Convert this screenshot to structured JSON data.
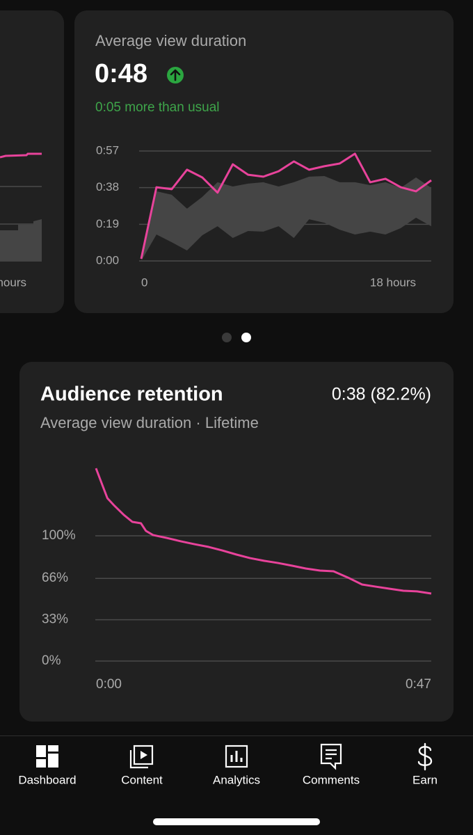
{
  "left_card": {
    "x_label": "hours"
  },
  "duration_card": {
    "title": "Average view duration",
    "value": "0:48",
    "change": "0:05 more than usual",
    "chart_data": {
      "type": "line",
      "x": [
        0,
        1,
        2,
        3,
        4,
        5,
        6,
        7,
        8,
        9,
        10,
        11,
        12,
        13,
        14,
        15,
        16,
        17,
        18,
        19
      ],
      "xlim": [
        0,
        19
      ],
      "xticks": [
        {
          "value": 0,
          "label": "0"
        },
        {
          "value": 18,
          "label": "18 hours"
        }
      ],
      "ylim": [
        0,
        57
      ],
      "yticks": [
        {
          "value": 0,
          "label": "0:00"
        },
        {
          "value": 19,
          "label": "0:19"
        },
        {
          "value": 38,
          "label": "0:38"
        },
        {
          "value": 57,
          "label": "0:57"
        }
      ],
      "grid": true,
      "series": [
        {
          "color": "#e8439b",
          "values": [
            1.1,
            38.2,
            37.2,
            47.3,
            43.3,
            35.4,
            50.1,
            44.7,
            43.7,
            46.5,
            51.6,
            47.3,
            49.1,
            50.5,
            55.6,
            40.8,
            42.6,
            38.2,
            36.1,
            41.8
          ]
        }
      ],
      "range": {
        "color": "#454545",
        "upper": [
          0,
          36.1,
          34.3,
          27.1,
          33.2,
          40.8,
          38.6,
          40.1,
          40.8,
          38.6,
          40.8,
          43.7,
          44.0,
          40.8,
          40.8,
          39.3,
          40.8,
          37.9,
          43.3,
          37.9
        ],
        "lower": [
          0,
          13.7,
          9.7,
          5.4,
          13.3,
          18.0,
          11.9,
          15.5,
          15.2,
          18.0,
          11.9,
          21.6,
          19.8,
          16.2,
          13.7,
          15.2,
          13.7,
          17.0,
          22.4,
          18.0
        ]
      }
    }
  },
  "retention_card": {
    "title": "Audience retention",
    "summary": "0:38 (82.2%)",
    "subtitle": "Average view duration · Lifetime",
    "chart_data": {
      "type": "line",
      "x": [
        0,
        1,
        1.6,
        2.6,
        3.9,
        5.1,
        6.3,
        7.0,
        8.0,
        9.9,
        11.9,
        13.8,
        15.8,
        17.7,
        19.7,
        21.6,
        23.6,
        25.5,
        27.5,
        29.4,
        31.4,
        33.3,
        35.3,
        37.3,
        39.2,
        41.1,
        43.1,
        45.0,
        47.0
      ],
      "xlim": [
        0,
        47
      ],
      "xticks": [
        {
          "value": 0,
          "label": "0:00"
        },
        {
          "value": 47,
          "label": "0:47"
        }
      ],
      "ylim": [
        0,
        160
      ],
      "yticks": [
        {
          "value": 0,
          "label": "0%"
        },
        {
          "value": 33,
          "label": "33%"
        },
        {
          "value": 66,
          "label": "66%"
        },
        {
          "value": 100,
          "label": "100%"
        }
      ],
      "grid": true,
      "series": [
        {
          "color": "#e8439b",
          "values": [
            153.9,
            138.9,
            130.0,
            123.9,
            116.7,
            111.1,
            110.0,
            103.9,
            100.6,
            98.3,
            95.6,
            93.3,
            91.1,
            88.3,
            85.0,
            82.2,
            80.0,
            78.3,
            76.1,
            73.9,
            72.2,
            71.7,
            66.7,
            61.1,
            59.4,
            57.8,
            56.1,
            55.6,
            53.9
          ]
        }
      ]
    }
  },
  "nav": {
    "items": [
      "Dashboard",
      "Content",
      "Analytics",
      "Comments",
      "Earn"
    ]
  }
}
